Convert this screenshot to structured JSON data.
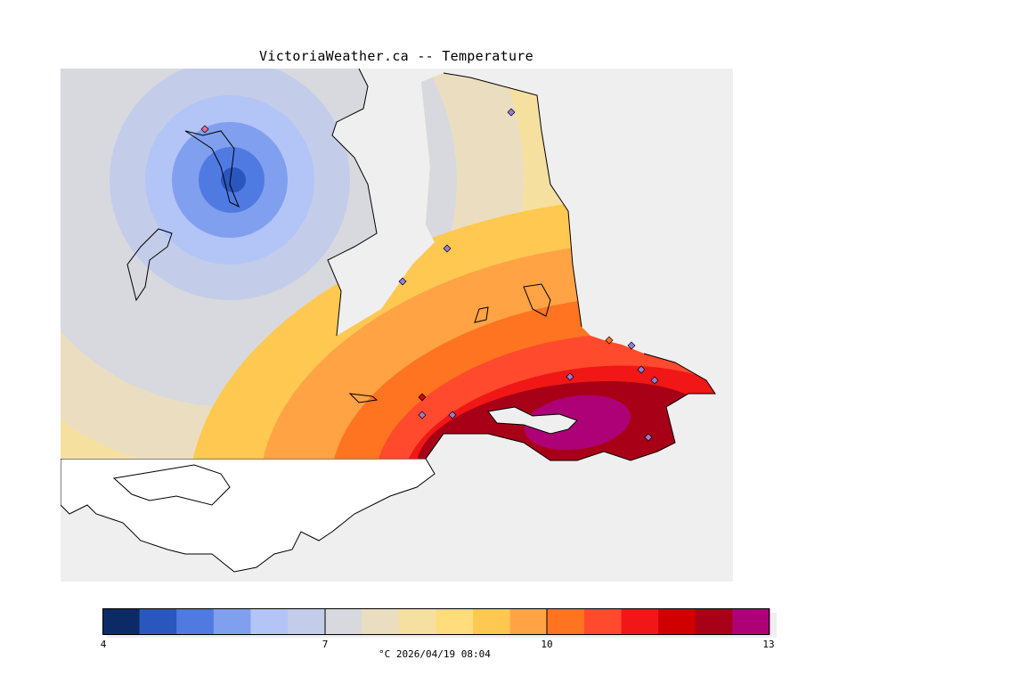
{
  "title": "VictoriaWeather.ca -- Temperature",
  "colorbar": {
    "min": 4,
    "max": 13,
    "colors": [
      "#0c2a66",
      "#2a57be",
      "#4f7ae2",
      "#80a0ef",
      "#b3c4f7",
      "#c3cde9",
      "#d8d9de",
      "#ebdec0",
      "#f6e0a0",
      "#ffdc7c",
      "#ffc850",
      "#ffa345",
      "#ff7420",
      "#ff4a2d",
      "#f01716",
      "#d10000",
      "#a80016",
      "#ae0077"
    ],
    "ticks": [
      "4",
      "7",
      "10",
      "13"
    ],
    "caption": "°C  2026/04/19 08:04"
  }
}
